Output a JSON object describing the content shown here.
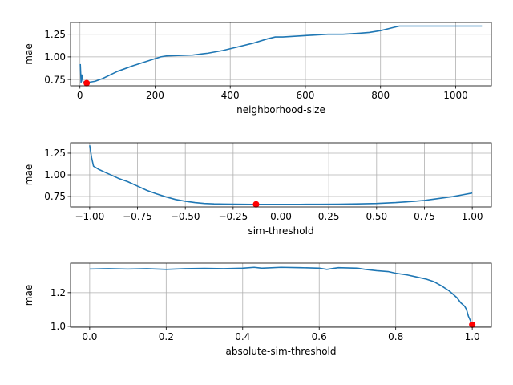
{
  "chart_data": [
    {
      "type": "line",
      "xlabel": "neighborhood-size",
      "ylabel": "mae",
      "xlim": [
        -25,
        1095
      ],
      "ylim": [
        0.68,
        1.38
      ],
      "xticks": [
        0,
        200,
        400,
        600,
        800,
        1000
      ],
      "xtick_labels": [
        "0",
        "200",
        "400",
        "600",
        "800",
        "1000"
      ],
      "yticks": [
        0.75,
        1.0,
        1.25
      ],
      "ytick_labels": [
        "0.75",
        "1.00",
        "1.25"
      ],
      "grid": true,
      "line_color": "#1f77b4",
      "marker_color": "#ff0000",
      "series": [
        {
          "x": [
            1,
            3,
            5,
            8,
            12,
            18,
            25,
            40,
            60,
            80,
            100,
            120,
            140,
            170,
            200,
            215,
            230,
            300,
            340,
            380,
            420,
            460,
            500,
            520,
            540,
            580,
            620,
            660,
            700,
            740,
            770,
            800,
            830,
            850,
            900,
            950,
            1000,
            1070
          ],
          "values": [
            0.92,
            0.72,
            0.8,
            0.73,
            0.71,
            0.715,
            0.72,
            0.73,
            0.76,
            0.8,
            0.84,
            0.87,
            0.9,
            0.94,
            0.98,
            1.0,
            1.01,
            1.02,
            1.04,
            1.07,
            1.11,
            1.15,
            1.2,
            1.22,
            1.22,
            1.23,
            1.24,
            1.25,
            1.25,
            1.26,
            1.27,
            1.29,
            1.32,
            1.34,
            1.34,
            1.34,
            1.34,
            1.34
          ]
        }
      ],
      "best_point": {
        "x": 18,
        "y": 0.71
      }
    },
    {
      "type": "line",
      "xlabel": "sim-threshold",
      "ylabel": "mae",
      "xlim": [
        -1.1,
        1.1
      ],
      "ylim": [
        0.63,
        1.37
      ],
      "xticks": [
        -1.0,
        -0.75,
        -0.5,
        -0.25,
        0.0,
        0.25,
        0.5,
        0.75,
        1.0
      ],
      "xtick_labels": [
        "−1.00",
        "−0.75",
        "−0.50",
        "−0.25",
        "0.00",
        "0.25",
        "0.50",
        "0.75",
        "1.00"
      ],
      "yticks": [
        0.75,
        1.0,
        1.25
      ],
      "ytick_labels": [
        "0.75",
        "1.00",
        "1.25"
      ],
      "grid": true,
      "line_color": "#1f77b4",
      "marker_color": "#ff0000",
      "series": [
        {
          "x": [
            -1.0,
            -0.99,
            -0.98,
            -0.95,
            -0.9,
            -0.85,
            -0.8,
            -0.75,
            -0.7,
            -0.65,
            -0.6,
            -0.55,
            -0.5,
            -0.45,
            -0.4,
            -0.35,
            -0.3,
            -0.25,
            -0.2,
            -0.15,
            -0.1,
            -0.05,
            0.0,
            0.1,
            0.2,
            0.3,
            0.4,
            0.5,
            0.6,
            0.7,
            0.75,
            0.8,
            0.85,
            0.9,
            0.95,
            1.0
          ],
          "values": [
            1.34,
            1.2,
            1.1,
            1.06,
            1.01,
            0.96,
            0.92,
            0.87,
            0.82,
            0.78,
            0.745,
            0.715,
            0.695,
            0.68,
            0.67,
            0.665,
            0.663,
            0.662,
            0.661,
            0.66,
            0.66,
            0.66,
            0.66,
            0.66,
            0.661,
            0.662,
            0.665,
            0.67,
            0.68,
            0.695,
            0.705,
            0.72,
            0.735,
            0.75,
            0.77,
            0.79
          ]
        }
      ],
      "best_point": {
        "x": -0.13,
        "y": 0.66
      }
    },
    {
      "type": "line",
      "xlabel": "absolute-sim-threshold",
      "ylabel": "mae",
      "xlim": [
        -0.05,
        1.05
      ],
      "ylim": [
        0.995,
        1.375
      ],
      "xticks": [
        0.0,
        0.2,
        0.4,
        0.6,
        0.8,
        1.0
      ],
      "xtick_labels": [
        "0.0",
        "0.2",
        "0.4",
        "0.6",
        "0.8",
        "1.0"
      ],
      "yticks": [
        1.0,
        1.2
      ],
      "ytick_labels": [
        "1.0",
        "1.2"
      ],
      "grid": true,
      "line_color": "#1f77b4",
      "marker_color": "#ff0000",
      "series": [
        {
          "x": [
            0.0,
            0.05,
            0.1,
            0.15,
            0.2,
            0.25,
            0.3,
            0.35,
            0.4,
            0.43,
            0.45,
            0.5,
            0.55,
            0.6,
            0.62,
            0.65,
            0.7,
            0.72,
            0.75,
            0.78,
            0.8,
            0.83,
            0.85,
            0.88,
            0.9,
            0.92,
            0.94,
            0.96,
            0.97,
            0.98,
            0.985,
            0.99,
            1.0
          ],
          "values": [
            1.34,
            1.342,
            1.34,
            1.342,
            1.338,
            1.342,
            1.344,
            1.342,
            1.345,
            1.35,
            1.345,
            1.35,
            1.348,
            1.345,
            1.338,
            1.348,
            1.345,
            1.338,
            1.33,
            1.325,
            1.315,
            1.305,
            1.295,
            1.28,
            1.265,
            1.24,
            1.21,
            1.17,
            1.14,
            1.12,
            1.1,
            1.06,
            1.01
          ]
        }
      ],
      "best_point": {
        "x": 1.0,
        "y": 1.01
      }
    }
  ]
}
